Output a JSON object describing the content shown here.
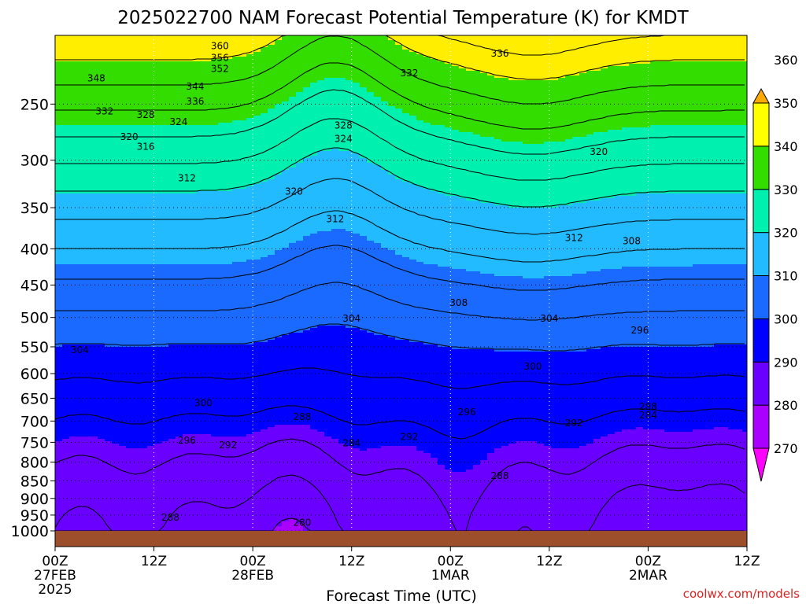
{
  "chart_data": {
    "type": "heatmap",
    "title": "2025022700 NAM Forecast Potential Temperature (K) for KMDT",
    "xlabel": "Forecast Time (UTC)",
    "credit": "coolwx.com/models",
    "x_range_hours": [
      0,
      84
    ],
    "y_range_hpa": [
      1000,
      200
    ],
    "y_ticks": [
      250,
      300,
      350,
      400,
      450,
      500,
      550,
      600,
      650,
      700,
      750,
      800,
      850,
      900,
      950,
      1000
    ],
    "y_tick_labels": [
      "250",
      "300",
      "350",
      "400",
      "450",
      "500",
      "550",
      "600",
      "650",
      "700",
      "750",
      "800",
      "850",
      "900",
      "950",
      "1000"
    ],
    "x_ticks": [
      {
        "hour": 0,
        "label": "00Z",
        "date": "27FEB",
        "year": "2025"
      },
      {
        "hour": 12,
        "label": "12Z",
        "date": "",
        "year": ""
      },
      {
        "hour": 24,
        "label": "00Z",
        "date": "28FEB",
        "year": ""
      },
      {
        "hour": 36,
        "label": "12Z",
        "date": "",
        "year": ""
      },
      {
        "hour": 48,
        "label": "00Z",
        "date": "1MAR",
        "year": ""
      },
      {
        "hour": 60,
        "label": "12Z",
        "date": "",
        "year": ""
      },
      {
        "hour": 72,
        "label": "00Z",
        "date": "2MAR",
        "year": ""
      },
      {
        "hour": 84,
        "label": "12Z",
        "date": "",
        "year": ""
      }
    ],
    "colorbar": {
      "labels": [
        "270",
        "280",
        "290",
        "300",
        "310",
        "320",
        "330",
        "340",
        "350",
        "360"
      ],
      "colors": [
        "#ff00ff",
        "#aa00ff",
        "#6a00ff",
        "#0000ff",
        "#1a6aff",
        "#22bbff",
        "#00f0b0",
        "#33dd00",
        "#ffff00",
        "#ffaa00"
      ]
    },
    "contour_levels_k": [
      280,
      284,
      288,
      292,
      296,
      300,
      304,
      308,
      312,
      316,
      320,
      324,
      328,
      332,
      336,
      340,
      344,
      348,
      352,
      356,
      360
    ],
    "contour_labels": [
      {
        "text": "360",
        "hour": 20,
        "hpa": 207
      },
      {
        "text": "356",
        "hour": 20,
        "hpa": 215
      },
      {
        "text": "352",
        "hour": 20,
        "hpa": 223
      },
      {
        "text": "348",
        "hour": 5,
        "hpa": 230
      },
      {
        "text": "344",
        "hour": 17,
        "hpa": 236
      },
      {
        "text": "336",
        "hour": 17,
        "hpa": 248
      },
      {
        "text": "332",
        "hour": 6,
        "hpa": 256
      },
      {
        "text": "328",
        "hour": 11,
        "hpa": 259
      },
      {
        "text": "324",
        "hour": 15,
        "hpa": 265
      },
      {
        "text": "320",
        "hour": 9,
        "hpa": 278
      },
      {
        "text": "316",
        "hour": 11,
        "hpa": 287
      },
      {
        "text": "312",
        "hour": 16,
        "hpa": 318
      },
      {
        "text": "320",
        "hour": 29,
        "hpa": 332
      },
      {
        "text": "312",
        "hour": 34,
        "hpa": 363
      },
      {
        "text": "328",
        "hour": 35,
        "hpa": 268
      },
      {
        "text": "324",
        "hour": 35,
        "hpa": 280
      },
      {
        "text": "332",
        "hour": 43,
        "hpa": 226
      },
      {
        "text": "336",
        "hour": 54,
        "hpa": 212
      },
      {
        "text": "320",
        "hour": 66,
        "hpa": 292
      },
      {
        "text": "312",
        "hour": 63,
        "hpa": 386
      },
      {
        "text": "308",
        "hour": 70,
        "hpa": 390
      },
      {
        "text": "308",
        "hour": 49,
        "hpa": 477
      },
      {
        "text": "304",
        "hour": 36,
        "hpa": 502
      },
      {
        "text": "304",
        "hour": 60,
        "hpa": 502
      },
      {
        "text": "304",
        "hour": 3,
        "hpa": 556
      },
      {
        "text": "300",
        "hour": 18,
        "hpa": 660
      },
      {
        "text": "300",
        "hour": 58,
        "hpa": 586
      },
      {
        "text": "296",
        "hour": 71,
        "hpa": 521
      },
      {
        "text": "296",
        "hour": 50,
        "hpa": 680
      },
      {
        "text": "296",
        "hour": 16,
        "hpa": 745
      },
      {
        "text": "292",
        "hour": 21,
        "hpa": 757
      },
      {
        "text": "292",
        "hour": 43,
        "hpa": 737
      },
      {
        "text": "292",
        "hour": 63,
        "hpa": 705
      },
      {
        "text": "288",
        "hour": 30,
        "hpa": 690
      },
      {
        "text": "288",
        "hour": 72,
        "hpa": 668
      },
      {
        "text": "288",
        "hour": 54,
        "hpa": 836
      },
      {
        "text": "284",
        "hour": 36,
        "hpa": 752
      },
      {
        "text": "284",
        "hour": 72,
        "hpa": 687
      },
      {
        "text": "288",
        "hour": 14,
        "hpa": 958
      },
      {
        "text": "280",
        "hour": 30,
        "hpa": 973
      }
    ]
  }
}
